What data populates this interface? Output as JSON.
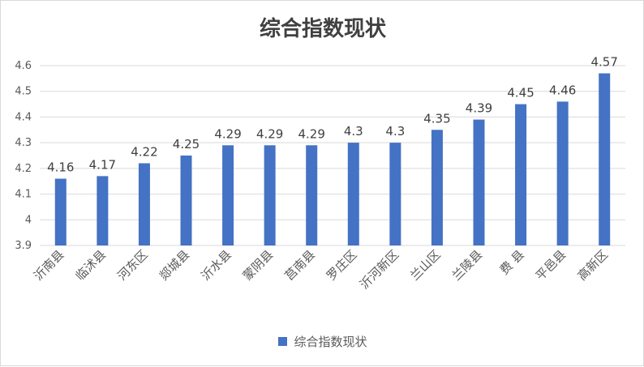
{
  "chart_data": {
    "type": "bar",
    "title": "综合指数现状",
    "categories": [
      "沂南县",
      "临沭县",
      "河东区",
      "郯城县",
      "沂水县",
      "蒙阴县",
      "莒南县",
      "罗庄区",
      "沂河新区",
      "兰山区",
      "兰陵县",
      "费 县",
      "平邑县",
      "高新区"
    ],
    "series": [
      {
        "name": "综合指数现状",
        "values": [
          4.16,
          4.17,
          4.22,
          4.25,
          4.29,
          4.29,
          4.29,
          4.3,
          4.3,
          4.35,
          4.39,
          4.45,
          4.46,
          4.57
        ]
      }
    ],
    "data_labels": [
      "4.16",
      "4.17",
      "4.22",
      "4.25",
      "4.29",
      "4.29",
      "4.29",
      "4.3",
      "4.3",
      "4.35",
      "4.39",
      "4.45",
      "4.46",
      "4.57"
    ],
    "ylim": [
      3.9,
      4.6
    ],
    "yticks": [
      "3.9",
      "4",
      "4.1",
      "4.2",
      "4.3",
      "4.4",
      "4.5",
      "4.6"
    ],
    "grid": true,
    "legend": "bottom",
    "bar_color": "#4472c4"
  }
}
